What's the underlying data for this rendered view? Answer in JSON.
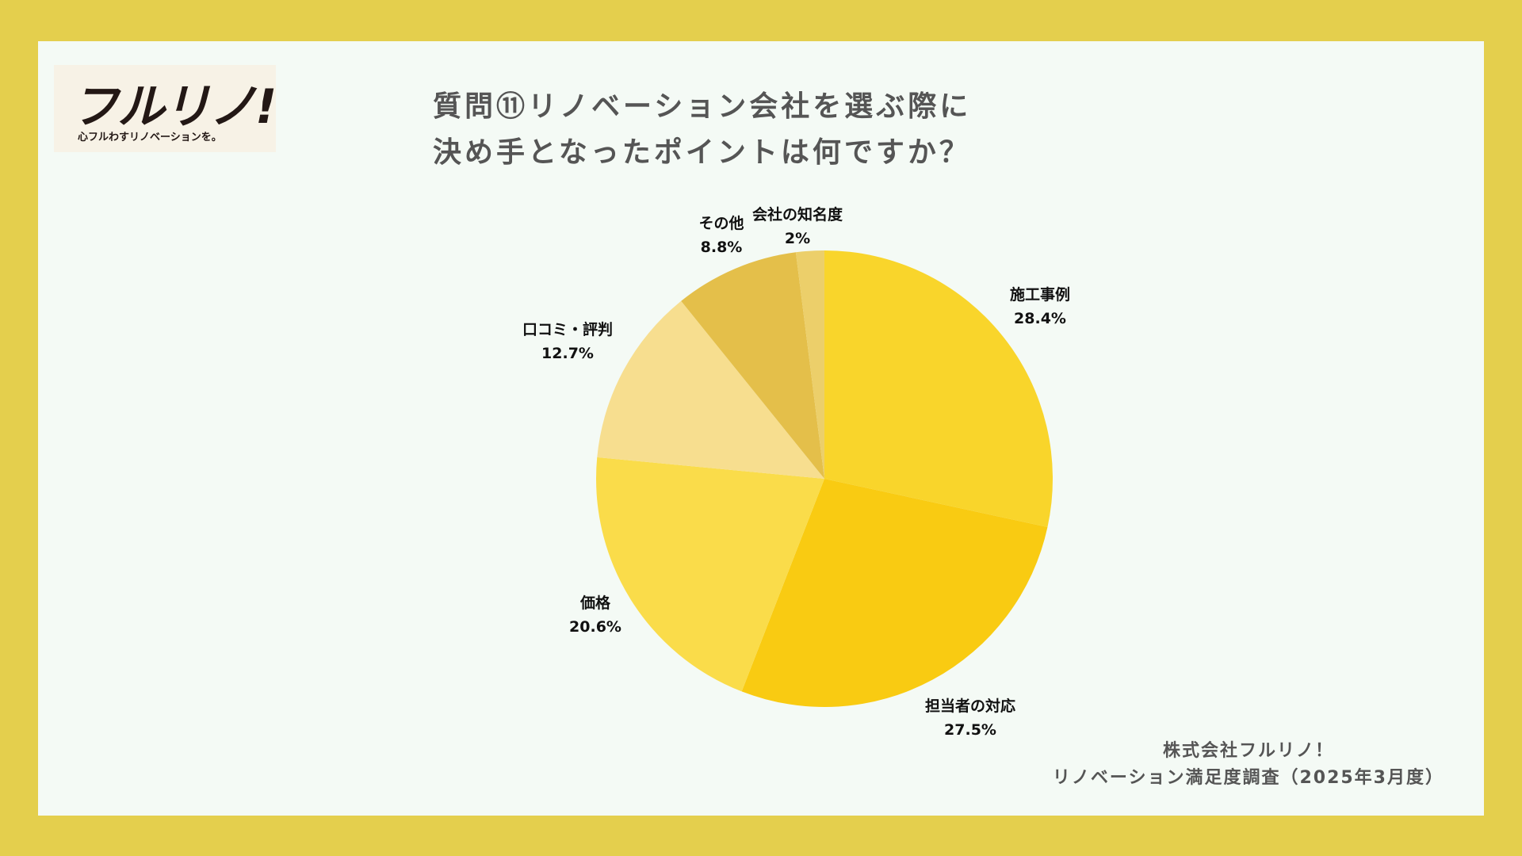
{
  "logo": {
    "text": "フルリノ!",
    "tagline": "心フルわすリノベーションを。"
  },
  "title_lines": [
    "質問⑪リノベーション会社を選ぶ際に",
    "決め手となったポイントは何ですか？"
  ],
  "footer_lines": [
    "株式会社フルリノ！",
    "リノベーション満足度調査（2025年3月度）"
  ],
  "chart_data": {
    "type": "pie",
    "start": "12 o'clock",
    "direction": "clockwise",
    "slices": [
      {
        "label": "施工事例",
        "value": 28.4,
        "display": "28.4%",
        "color": "#f9d52b"
      },
      {
        "label": "担当者の対応",
        "value": 27.5,
        "display": "27.5%",
        "color": "#f9cb12"
      },
      {
        "label": "価格",
        "value": 20.6,
        "display": "20.6%",
        "color": "#fadc4a"
      },
      {
        "label": "口コミ・評判",
        "value": 12.7,
        "display": "12.7%",
        "color": "#f7de8f"
      },
      {
        "label": "その他",
        "value": 8.8,
        "display": "8.8%",
        "color": "#e4bf4a"
      },
      {
        "label": "会社の知名度",
        "value": 2,
        "display": "2%",
        "color": "#eccf6a"
      }
    ]
  }
}
